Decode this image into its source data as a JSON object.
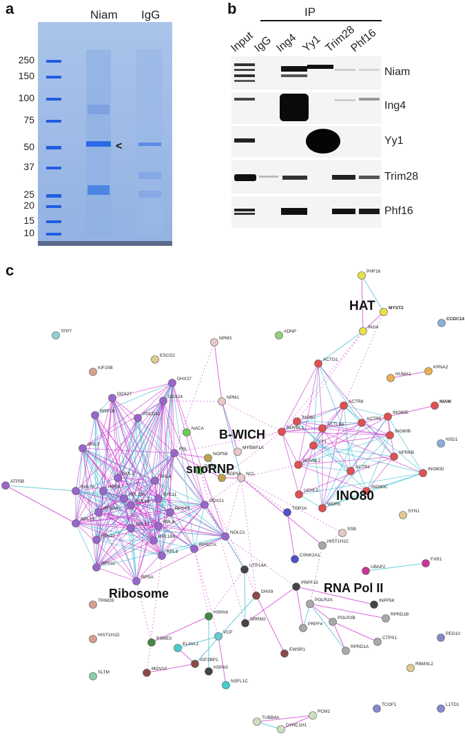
{
  "panel_a": {
    "label": "a",
    "lanes": [
      "Niam",
      "IgG"
    ],
    "markers": [
      "250",
      "150",
      "100",
      "75",
      "50",
      "37",
      "25",
      "20",
      "15",
      "10"
    ],
    "arrow": "<"
  },
  "panel_b": {
    "label": "b",
    "ip_label": "IP",
    "lanes": [
      "Input",
      "IgG",
      "Ing4",
      "Yy1",
      "Trim28",
      "Phf16"
    ],
    "rows": [
      "Niam",
      "Ing4",
      "Yy1",
      "Trim28",
      "Phf16"
    ]
  },
  "panel_c": {
    "label": "c",
    "groups": [
      "HAT",
      "B-WICH",
      "snoRNP",
      "INO80",
      "Ribosome",
      "RNA Pol II"
    ],
    "colors": {
      "purple": "#9966cc",
      "red": "#e05050",
      "gray": "#a8a8a8",
      "edge_magenta": "#cc33cc",
      "edge_cyan": "#33bbcc"
    },
    "nodes": [
      {
        "id": "PHF16",
        "color": "#e8e04a"
      },
      {
        "id": "MYST2",
        "color": "#e8e04a"
      },
      {
        "id": "ING4",
        "color": "#e8e04a"
      },
      {
        "id": "CCDC14",
        "color": "#8aaed8"
      },
      {
        "id": "TFPT",
        "color": "#8fd0d0"
      },
      {
        "id": "ADNP",
        "color": "#8fd07a"
      },
      {
        "id": "NPM3",
        "color": "#e8c8c8"
      },
      {
        "id": "ESCO2",
        "color": "#e0c890"
      },
      {
        "id": "KIF20B",
        "color": "#d8a090"
      },
      {
        "id": "ACTG1",
        "color": "#e05050"
      },
      {
        "id": "NUMA1",
        "color": "#e8b050"
      },
      {
        "id": "KPNA2",
        "color": "#e8b050"
      },
      {
        "id": "DHX37",
        "color": "#9966cc"
      },
      {
        "id": "DDX27",
        "color": "#9966cc"
      },
      {
        "id": "DDX24",
        "color": "#9966cc"
      },
      {
        "id": "RRP1B",
        "color": "#9966cc"
      },
      {
        "id": "PDCD11",
        "color": "#9966cc"
      },
      {
        "id": "NPM1",
        "color": "#e8c8c8"
      },
      {
        "id": "ACTR8",
        "color": "#e05050"
      },
      {
        "id": "INO80E",
        "color": "#e05050"
      },
      {
        "id": "NIAM",
        "color": "#e05050"
      },
      {
        "id": "NACA",
        "color": "#66cc55"
      },
      {
        "id": "INO80",
        "color": "#e05050"
      },
      {
        "id": "ACTL6A",
        "color": "#e05050"
      },
      {
        "id": "ACTR5",
        "color": "#e05050"
      },
      {
        "id": "INO80B",
        "color": "#e05050"
      },
      {
        "id": "NSD1",
        "color": "#8aaed8"
      },
      {
        "id": "GNL3",
        "color": "#9966cc"
      },
      {
        "id": "FBL",
        "color": "#9966cc"
      },
      {
        "id": "MYBBP1A",
        "color": "#e8c8c8"
      },
      {
        "id": "RUVBL1",
        "color": "#e05050"
      },
      {
        "id": "YY1",
        "color": "#e05050"
      },
      {
        "id": "NFRKB",
        "color": "#e05050"
      },
      {
        "id": "NOP58",
        "color": "#c0a050"
      },
      {
        "id": "ATP5B",
        "color": "#9966cc"
      },
      {
        "id": "RPL3",
        "color": "#9966cc"
      },
      {
        "id": "RPL4",
        "color": "#9966cc"
      },
      {
        "id": "DDX5",
        "color": "#66cc55"
      },
      {
        "id": "NOP56",
        "color": "#c0a050"
      },
      {
        "id": "NCL",
        "color": "#e8c8c8"
      },
      {
        "id": "RUVBL2",
        "color": "#e05050"
      },
      {
        "id": "ACTR1",
        "color": "#e05050"
      },
      {
        "id": "INO80D",
        "color": "#e05050"
      },
      {
        "id": "RPL7A",
        "color": "#9966cc"
      },
      {
        "id": "RPS8",
        "color": "#9966cc"
      },
      {
        "id": "RPL13A",
        "color": "#9966cc"
      },
      {
        "id": "RPL11",
        "color": "#9966cc"
      },
      {
        "id": "INO80C",
        "color": "#e05050"
      },
      {
        "id": "UCHL5",
        "color": "#e05050"
      },
      {
        "id": "WDR5",
        "color": "#e05050"
      },
      {
        "id": "RPS3A",
        "color": "#9966cc"
      },
      {
        "id": "RPL19",
        "color": "#9966cc"
      },
      {
        "id": "RPS4X",
        "color": "#9966cc"
      },
      {
        "id": "DDX21",
        "color": "#9966cc"
      },
      {
        "id": "SYN1",
        "color": "#e0c890"
      },
      {
        "id": "RPL23",
        "color": "#9966cc"
      },
      {
        "id": "RPL6",
        "color": "#9966cc"
      },
      {
        "id": "RPL12",
        "color": "#9966cc"
      },
      {
        "id": "RPL18A",
        "color": "#9966cc"
      },
      {
        "id": "NOLC1",
        "color": "#9966cc"
      },
      {
        "id": "TOP2A",
        "color": "#5050cc"
      },
      {
        "id": "SSB",
        "color": "#e8c8c8"
      },
      {
        "id": "HIST1H1C",
        "color": "#a8a8a8"
      },
      {
        "id": "RPL10",
        "color": "#9966cc"
      },
      {
        "id": "RPL9",
        "color": "#9966cc"
      },
      {
        "id": "RPS27A",
        "color": "#9966cc"
      },
      {
        "id": "CSNK2A1",
        "color": "#5050cc"
      },
      {
        "id": "FXR1",
        "color": "#cc3399"
      },
      {
        "id": "RPS11",
        "color": "#9966cc"
      },
      {
        "id": "RPSA",
        "color": "#9966cc"
      },
      {
        "id": "UTP14A",
        "color": "#444444"
      },
      {
        "id": "UBAP2",
        "color": "#cc3399"
      },
      {
        "id": "PRPF19",
        "color": "#444444"
      },
      {
        "id": "DHX9",
        "color": "#8a4a4a"
      },
      {
        "id": "INPP5K",
        "color": "#444444"
      },
      {
        "id": "POLR2A",
        "color": "#a8a8a8"
      },
      {
        "id": "RPRD1B",
        "color": "#a8a8a8"
      },
      {
        "id": "TRIM28",
        "color": "#d8a090"
      },
      {
        "id": "HSPA8",
        "color": "#448844"
      },
      {
        "id": "SRRM2",
        "color": "#444444"
      },
      {
        "id": "PRPF4",
        "color": "#a8a8a8"
      },
      {
        "id": "POLR2B",
        "color": "#a8a8a8"
      },
      {
        "id": "PSME3",
        "color": "#448844"
      },
      {
        "id": "VCP",
        "color": "#66cccc"
      },
      {
        "id": "ELAVL1",
        "color": "#44cccc"
      },
      {
        "id": "CTPS1",
        "color": "#a8a8a8"
      },
      {
        "id": "PEG10",
        "color": "#8888cc"
      },
      {
        "id": "HIST1H1D",
        "color": "#d8a090"
      },
      {
        "id": "IGF2BP1",
        "color": "#8a4a4a"
      },
      {
        "id": "RPRD1A",
        "color": "#a8a8a8"
      },
      {
        "id": "EWSR1",
        "color": "#8a4a4a"
      },
      {
        "id": "HSPA5",
        "color": "#444444"
      },
      {
        "id": "RBMXL2",
        "color": "#e0c890"
      },
      {
        "id": "MOV10",
        "color": "#8a4a4a"
      },
      {
        "id": "NSFL1C",
        "color": "#44cccc"
      },
      {
        "id": "SLTM",
        "color": "#88ccaa"
      },
      {
        "id": "PCM1",
        "color": "#cce0c0"
      },
      {
        "id": "TCOF1",
        "color": "#8888cc"
      },
      {
        "id": "L1TD1",
        "color": "#8888cc"
      },
      {
        "id": "TUBB4A",
        "color": "#cce0c0"
      },
      {
        "id": "DYNC1H1",
        "color": "#cce0c0"
      }
    ]
  }
}
